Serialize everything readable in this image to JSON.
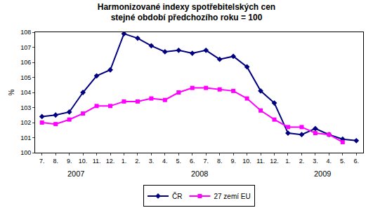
{
  "chart_data": {
    "type": "line",
    "title": "Harmonizované indexy spotřebitelských cen",
    "subtitle": "stejné období předchozího roku = 100",
    "y_label": "%",
    "categories": [
      "7.",
      "8.",
      "9.",
      "10.",
      "11.",
      "12.",
      "1.",
      "2.",
      "3.",
      "4.",
      "5.",
      "6.",
      "7.",
      "8.",
      "9.",
      "10.",
      "11.",
      "12.",
      "1.",
      "2.",
      "3.",
      "4.",
      "5.",
      "6."
    ],
    "series": [
      {
        "name": "ČR",
        "color": "#000080",
        "marker": "diamond",
        "line_style": "solid",
        "values": [
          102.4,
          102.5,
          102.7,
          104.0,
          105.1,
          105.5,
          107.9,
          107.6,
          107.1,
          106.7,
          106.8,
          106.6,
          106.8,
          106.2,
          106.4,
          105.7,
          104.1,
          103.3,
          101.3,
          101.2,
          101.6,
          101.2,
          100.9,
          100.8
        ]
      },
      {
        "name": "27 zemí EU",
        "color": "#FF00FF",
        "marker": "square",
        "line_style": "solid",
        "values": [
          102.0,
          101.9,
          102.2,
          102.6,
          103.1,
          103.1,
          103.4,
          103.4,
          103.6,
          103.5,
          104.0,
          104.3,
          104.3,
          104.2,
          104.1,
          103.6,
          102.8,
          102.2,
          101.7,
          101.7,
          101.3,
          101.2,
          100.7,
          null
        ]
      }
    ],
    "annotations": [
      {
        "text": "2007",
        "x": 2.5
      },
      {
        "text": "2008",
        "x": 11.5
      },
      {
        "text": "2009",
        "x": 20.5
      }
    ],
    "ylim": [
      100,
      108
    ],
    "yticks": [
      100,
      101,
      102,
      103,
      104,
      105,
      106,
      107,
      108
    ],
    "grid": false,
    "legend": "bottom"
  }
}
